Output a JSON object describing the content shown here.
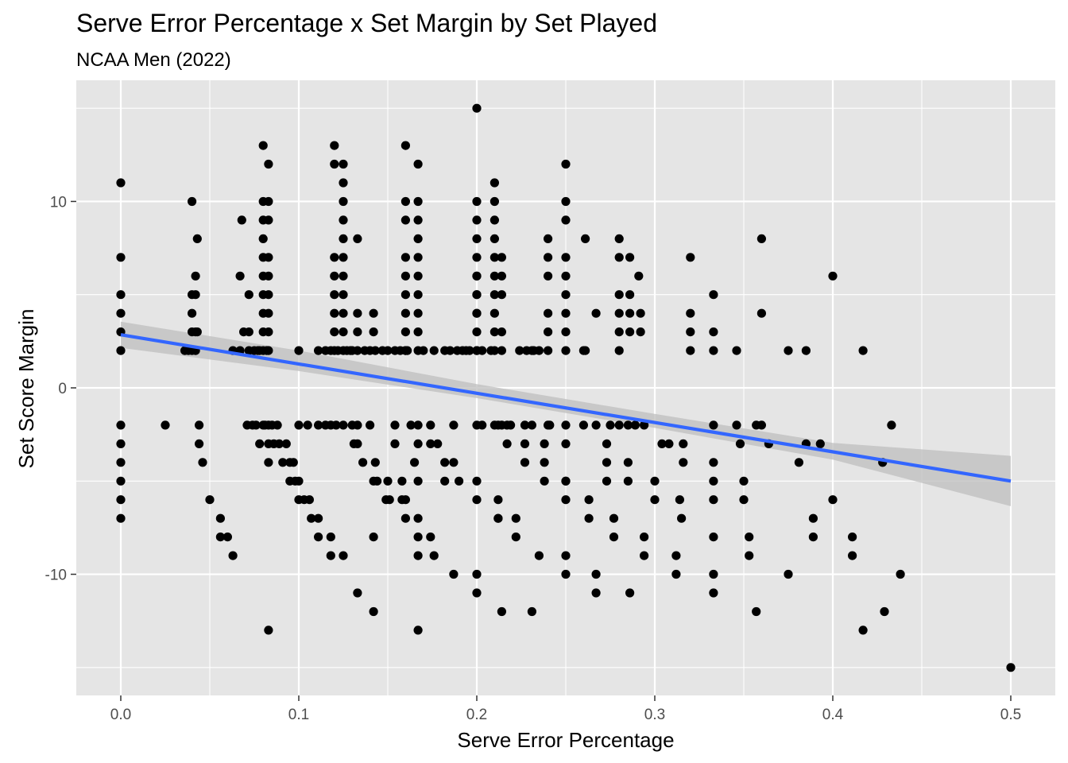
{
  "chart_data": {
    "type": "scatter",
    "title": "Serve Error Percentage x Set Margin by Set Played",
    "subtitle": "NCAA Men (2022)",
    "xlabel": "Serve Error Percentage",
    "ylabel": "Set Score Margin",
    "xlim": [
      -0.025,
      0.525
    ],
    "ylim": [
      -16.5,
      16.5
    ],
    "x_ticks": [
      0.0,
      0.1,
      0.2,
      0.3,
      0.4,
      0.5
    ],
    "x_tick_labels": [
      "0.0",
      "0.1",
      "0.2",
      "0.3",
      "0.4",
      "0.5"
    ],
    "y_ticks": [
      -10,
      0,
      10
    ],
    "y_tick_labels": [
      "-10",
      "0",
      "10"
    ],
    "grid": true,
    "legend": "none",
    "colors": {
      "panel": "#e5e5e5",
      "grid": "#ffffff",
      "points": "#000000",
      "trend_line": "#3366ff",
      "confidence_band": "#bdbdbd"
    },
    "trend_line": {
      "x": [
        0.0,
        0.5
      ],
      "y": [
        2.85,
        -5.0
      ]
    },
    "confidence_band": {
      "x": [
        0.0,
        0.1,
        0.2,
        0.3,
        0.4,
        0.5
      ],
      "lower": [
        2.15,
        0.9,
        -0.55,
        -2.15,
        -3.85,
        -6.35
      ],
      "upper": [
        3.55,
        2.0,
        0.2,
        -1.4,
        -2.95,
        -3.65
      ]
    },
    "points": [
      [
        0.0,
        11
      ],
      [
        0.0,
        7
      ],
      [
        0.0,
        5
      ],
      [
        0.0,
        4
      ],
      [
        0.0,
        3
      ],
      [
        0.0,
        2
      ],
      [
        0.0,
        -2
      ],
      [
        0.0,
        -3
      ],
      [
        0.0,
        -4
      ],
      [
        0.0,
        -5
      ],
      [
        0.0,
        -6
      ],
      [
        0.0,
        -7
      ],
      [
        0.025,
        -2
      ],
      [
        0.036,
        2
      ],
      [
        0.038,
        2
      ],
      [
        0.04,
        2
      ],
      [
        0.04,
        3
      ],
      [
        0.04,
        4
      ],
      [
        0.04,
        5
      ],
      [
        0.04,
        10
      ],
      [
        0.042,
        2
      ],
      [
        0.042,
        3
      ],
      [
        0.042,
        5
      ],
      [
        0.042,
        6
      ],
      [
        0.043,
        8
      ],
      [
        0.043,
        3
      ],
      [
        0.044,
        -2
      ],
      [
        0.044,
        -3
      ],
      [
        0.046,
        -4
      ],
      [
        0.05,
        -6
      ],
      [
        0.056,
        -7
      ],
      [
        0.056,
        -8
      ],
      [
        0.06,
        -8
      ],
      [
        0.063,
        -9
      ],
      [
        0.063,
        2
      ],
      [
        0.067,
        2
      ],
      [
        0.067,
        6
      ],
      [
        0.068,
        9
      ],
      [
        0.069,
        3
      ],
      [
        0.071,
        -2
      ],
      [
        0.072,
        2
      ],
      [
        0.072,
        5
      ],
      [
        0.072,
        3
      ],
      [
        0.074,
        -2
      ],
      [
        0.075,
        2
      ],
      [
        0.076,
        -2
      ],
      [
        0.077,
        2
      ],
      [
        0.078,
        -3
      ],
      [
        0.078,
        2
      ],
      [
        0.08,
        2
      ],
      [
        0.08,
        -2
      ],
      [
        0.08,
        13
      ],
      [
        0.08,
        10
      ],
      [
        0.08,
        9
      ],
      [
        0.08,
        8
      ],
      [
        0.08,
        7
      ],
      [
        0.08,
        6
      ],
      [
        0.08,
        5
      ],
      [
        0.08,
        4
      ],
      [
        0.08,
        3
      ],
      [
        0.081,
        -2
      ],
      [
        0.082,
        2
      ],
      [
        0.083,
        12
      ],
      [
        0.083,
        10
      ],
      [
        0.083,
        9
      ],
      [
        0.083,
        7
      ],
      [
        0.083,
        6
      ],
      [
        0.083,
        5
      ],
      [
        0.083,
        4
      ],
      [
        0.083,
        3
      ],
      [
        0.083,
        2
      ],
      [
        0.083,
        -2
      ],
      [
        0.083,
        -3
      ],
      [
        0.083,
        -4
      ],
      [
        0.083,
        -13
      ],
      [
        0.085,
        -2
      ],
      [
        0.086,
        -3
      ],
      [
        0.088,
        -2
      ],
      [
        0.089,
        -3
      ],
      [
        0.091,
        -4
      ],
      [
        0.093,
        -3
      ],
      [
        0.095,
        -4
      ],
      [
        0.095,
        -5
      ],
      [
        0.097,
        -4
      ],
      [
        0.098,
        -5
      ],
      [
        0.1,
        2
      ],
      [
        0.1,
        -2
      ],
      [
        0.1,
        -5
      ],
      [
        0.1,
        -6
      ],
      [
        0.103,
        -6
      ],
      [
        0.105,
        -2
      ],
      [
        0.106,
        -6
      ],
      [
        0.107,
        -7
      ],
      [
        0.111,
        -2
      ],
      [
        0.111,
        -7
      ],
      [
        0.111,
        -8
      ],
      [
        0.111,
        2
      ],
      [
        0.115,
        -2
      ],
      [
        0.115,
        2
      ],
      [
        0.118,
        -2
      ],
      [
        0.118,
        2
      ],
      [
        0.118,
        -9
      ],
      [
        0.118,
        -8
      ],
      [
        0.12,
        13
      ],
      [
        0.12,
        12
      ],
      [
        0.12,
        7
      ],
      [
        0.12,
        6
      ],
      [
        0.12,
        5
      ],
      [
        0.12,
        4
      ],
      [
        0.12,
        3
      ],
      [
        0.12,
        2
      ],
      [
        0.121,
        -2
      ],
      [
        0.122,
        2
      ],
      [
        0.125,
        12
      ],
      [
        0.125,
        11
      ],
      [
        0.125,
        10
      ],
      [
        0.125,
        9
      ],
      [
        0.125,
        8
      ],
      [
        0.125,
        7
      ],
      [
        0.125,
        6
      ],
      [
        0.125,
        5
      ],
      [
        0.125,
        4
      ],
      [
        0.125,
        3
      ],
      [
        0.125,
        2
      ],
      [
        0.125,
        -2
      ],
      [
        0.125,
        -9
      ],
      [
        0.127,
        2
      ],
      [
        0.129,
        2
      ],
      [
        0.13,
        -2
      ],
      [
        0.13,
        2
      ],
      [
        0.131,
        -3
      ],
      [
        0.133,
        8
      ],
      [
        0.133,
        -2
      ],
      [
        0.133,
        2
      ],
      [
        0.133,
        -3
      ],
      [
        0.133,
        -11
      ],
      [
        0.133,
        4
      ],
      [
        0.133,
        3
      ],
      [
        0.136,
        -4
      ],
      [
        0.137,
        2
      ],
      [
        0.14,
        -2
      ],
      [
        0.14,
        2
      ],
      [
        0.142,
        4
      ],
      [
        0.142,
        3
      ],
      [
        0.142,
        -5
      ],
      [
        0.142,
        -8
      ],
      [
        0.142,
        -12
      ],
      [
        0.143,
        -4
      ],
      [
        0.143,
        2
      ],
      [
        0.144,
        -5
      ],
      [
        0.147,
        2
      ],
      [
        0.149,
        -6
      ],
      [
        0.15,
        -5
      ],
      [
        0.15,
        2
      ],
      [
        0.151,
        -6
      ],
      [
        0.154,
        -2
      ],
      [
        0.154,
        2
      ],
      [
        0.154,
        -3
      ],
      [
        0.157,
        2
      ],
      [
        0.158,
        -5
      ],
      [
        0.158,
        -6
      ],
      [
        0.16,
        2
      ],
      [
        0.16,
        -6
      ],
      [
        0.16,
        -7
      ],
      [
        0.16,
        13
      ],
      [
        0.16,
        10
      ],
      [
        0.16,
        9
      ],
      [
        0.16,
        7
      ],
      [
        0.16,
        6
      ],
      [
        0.16,
        5
      ],
      [
        0.16,
        4
      ],
      [
        0.16,
        3
      ],
      [
        0.16,
        2
      ],
      [
        0.161,
        2
      ],
      [
        0.163,
        -2
      ],
      [
        0.165,
        -4
      ],
      [
        0.167,
        12
      ],
      [
        0.167,
        10
      ],
      [
        0.167,
        9
      ],
      [
        0.167,
        8
      ],
      [
        0.167,
        7
      ],
      [
        0.167,
        6
      ],
      [
        0.167,
        5
      ],
      [
        0.167,
        4
      ],
      [
        0.167,
        3
      ],
      [
        0.167,
        2
      ],
      [
        0.167,
        -2
      ],
      [
        0.167,
        -3
      ],
      [
        0.167,
        -5
      ],
      [
        0.167,
        -7
      ],
      [
        0.167,
        -8
      ],
      [
        0.167,
        -9
      ],
      [
        0.167,
        -13
      ],
      [
        0.17,
        2
      ],
      [
        0.174,
        -2
      ],
      [
        0.174,
        -3
      ],
      [
        0.174,
        -8
      ],
      [
        0.176,
        -9
      ],
      [
        0.176,
        2
      ],
      [
        0.178,
        -3
      ],
      [
        0.182,
        2
      ],
      [
        0.182,
        -4
      ],
      [
        0.182,
        -5
      ],
      [
        0.185,
        2
      ],
      [
        0.187,
        -2
      ],
      [
        0.187,
        -4
      ],
      [
        0.187,
        -10
      ],
      [
        0.189,
        2
      ],
      [
        0.19,
        -5
      ],
      [
        0.192,
        2
      ],
      [
        0.194,
        2
      ],
      [
        0.196,
        2
      ],
      [
        0.2,
        15
      ],
      [
        0.2,
        10
      ],
      [
        0.2,
        9
      ],
      [
        0.2,
        8
      ],
      [
        0.2,
        7
      ],
      [
        0.2,
        6
      ],
      [
        0.2,
        5
      ],
      [
        0.2,
        4
      ],
      [
        0.2,
        3
      ],
      [
        0.2,
        2
      ],
      [
        0.2,
        -2
      ],
      [
        0.2,
        -5
      ],
      [
        0.2,
        -6
      ],
      [
        0.2,
        -10
      ],
      [
        0.2,
        -11
      ],
      [
        0.2,
        4
      ],
      [
        0.2,
        5
      ],
      [
        0.2,
        6
      ],
      [
        0.2,
        2
      ],
      [
        0.203,
        -2
      ],
      [
        0.203,
        2
      ],
      [
        0.208,
        2
      ],
      [
        0.21,
        11
      ],
      [
        0.21,
        10
      ],
      [
        0.21,
        9
      ],
      [
        0.21,
        8
      ],
      [
        0.21,
        7
      ],
      [
        0.21,
        6
      ],
      [
        0.21,
        5
      ],
      [
        0.21,
        4
      ],
      [
        0.21,
        3
      ],
      [
        0.21,
        2
      ],
      [
        0.21,
        -2
      ],
      [
        0.212,
        -2
      ],
      [
        0.212,
        -6
      ],
      [
        0.212,
        -7
      ],
      [
        0.212,
        -7
      ],
      [
        0.214,
        -12
      ],
      [
        0.214,
        -2
      ],
      [
        0.214,
        2
      ],
      [
        0.214,
        7
      ],
      [
        0.214,
        6
      ],
      [
        0.214,
        5
      ],
      [
        0.214,
        3
      ],
      [
        0.217,
        -2
      ],
      [
        0.217,
        -3
      ],
      [
        0.219,
        -2
      ],
      [
        0.222,
        -7
      ],
      [
        0.222,
        -8
      ],
      [
        0.224,
        2
      ],
      [
        0.227,
        -2
      ],
      [
        0.227,
        -3
      ],
      [
        0.227,
        -4
      ],
      [
        0.228,
        2
      ],
      [
        0.231,
        -12
      ],
      [
        0.231,
        -2
      ],
      [
        0.231,
        2
      ],
      [
        0.232,
        2
      ],
      [
        0.235,
        2
      ],
      [
        0.235,
        -9
      ],
      [
        0.238,
        -3
      ],
      [
        0.238,
        -4
      ],
      [
        0.238,
        -5
      ],
      [
        0.24,
        8
      ],
      [
        0.24,
        7
      ],
      [
        0.24,
        6
      ],
      [
        0.24,
        4
      ],
      [
        0.24,
        3
      ],
      [
        0.24,
        2
      ],
      [
        0.24,
        -2
      ],
      [
        0.241,
        -2
      ],
      [
        0.25,
        12
      ],
      [
        0.25,
        10
      ],
      [
        0.25,
        9
      ],
      [
        0.25,
        7
      ],
      [
        0.25,
        6
      ],
      [
        0.25,
        5
      ],
      [
        0.25,
        4
      ],
      [
        0.25,
        3
      ],
      [
        0.25,
        2
      ],
      [
        0.25,
        -2
      ],
      [
        0.25,
        -3
      ],
      [
        0.25,
        -5
      ],
      [
        0.25,
        -6
      ],
      [
        0.25,
        -9
      ],
      [
        0.25,
        -10
      ],
      [
        0.25,
        -5
      ],
      [
        0.26,
        2
      ],
      [
        0.261,
        8
      ],
      [
        0.261,
        2
      ],
      [
        0.26,
        -2
      ],
      [
        0.263,
        -6
      ],
      [
        0.263,
        -7
      ],
      [
        0.267,
        -2
      ],
      [
        0.267,
        -10
      ],
      [
        0.267,
        -11
      ],
      [
        0.267,
        4
      ],
      [
        0.273,
        -3
      ],
      [
        0.273,
        -4
      ],
      [
        0.273,
        -5
      ],
      [
        0.275,
        -2
      ],
      [
        0.277,
        -7
      ],
      [
        0.277,
        -8
      ],
      [
        0.28,
        8
      ],
      [
        0.28,
        7
      ],
      [
        0.28,
        5
      ],
      [
        0.28,
        4
      ],
      [
        0.28,
        3
      ],
      [
        0.28,
        2
      ],
      [
        0.28,
        -2
      ],
      [
        0.285,
        -2
      ],
      [
        0.285,
        -4
      ],
      [
        0.285,
        -5
      ],
      [
        0.286,
        7
      ],
      [
        0.286,
        5
      ],
      [
        0.286,
        4
      ],
      [
        0.286,
        3
      ],
      [
        0.286,
        -11
      ],
      [
        0.289,
        -2
      ],
      [
        0.291,
        6
      ],
      [
        0.292,
        4
      ],
      [
        0.292,
        3
      ],
      [
        0.294,
        -8
      ],
      [
        0.294,
        -9
      ],
      [
        0.294,
        -2
      ],
      [
        0.3,
        -5
      ],
      [
        0.3,
        -6
      ],
      [
        0.304,
        -3
      ],
      [
        0.308,
        -3
      ],
      [
        0.312,
        -9
      ],
      [
        0.312,
        -10
      ],
      [
        0.314,
        -6
      ],
      [
        0.315,
        -7
      ],
      [
        0.316,
        -3
      ],
      [
        0.316,
        -4
      ],
      [
        0.32,
        7
      ],
      [
        0.32,
        4
      ],
      [
        0.32,
        3
      ],
      [
        0.32,
        2
      ],
      [
        0.333,
        5
      ],
      [
        0.333,
        3
      ],
      [
        0.333,
        2
      ],
      [
        0.333,
        -2
      ],
      [
        0.333,
        -4
      ],
      [
        0.333,
        -5
      ],
      [
        0.333,
        -6
      ],
      [
        0.333,
        -8
      ],
      [
        0.333,
        -10
      ],
      [
        0.333,
        -11
      ],
      [
        0.346,
        2
      ],
      [
        0.346,
        -2
      ],
      [
        0.348,
        -3
      ],
      [
        0.35,
        -5
      ],
      [
        0.35,
        -6
      ],
      [
        0.353,
        -8
      ],
      [
        0.353,
        -9
      ],
      [
        0.357,
        -2
      ],
      [
        0.357,
        -12
      ],
      [
        0.36,
        8
      ],
      [
        0.36,
        4
      ],
      [
        0.36,
        -2
      ],
      [
        0.364,
        -3
      ],
      [
        0.375,
        2
      ],
      [
        0.375,
        -10
      ],
      [
        0.381,
        -4
      ],
      [
        0.385,
        2
      ],
      [
        0.385,
        -3
      ],
      [
        0.389,
        -7
      ],
      [
        0.389,
        -8
      ],
      [
        0.393,
        -3
      ],
      [
        0.4,
        6
      ],
      [
        0.4,
        -6
      ],
      [
        0.411,
        -8
      ],
      [
        0.411,
        -9
      ],
      [
        0.417,
        2
      ],
      [
        0.417,
        -13
      ],
      [
        0.428,
        -4
      ],
      [
        0.429,
        -12
      ],
      [
        0.433,
        -2
      ],
      [
        0.438,
        -10
      ],
      [
        0.5,
        -15
      ]
    ]
  }
}
